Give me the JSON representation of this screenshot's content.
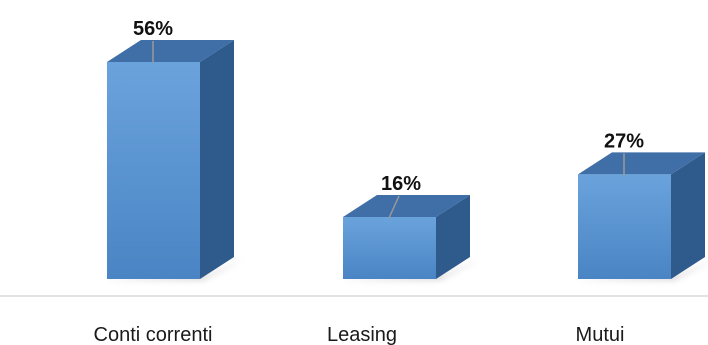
{
  "chart_data": {
    "type": "bar",
    "categories": [
      "Conti correnti",
      "Leasing",
      "Mutui"
    ],
    "values": [
      56,
      16,
      27
    ],
    "value_labels": [
      "56%",
      "16%",
      "27%"
    ],
    "unit": "%",
    "ylim": [
      0,
      60
    ],
    "grid": false,
    "legend": "none",
    "style": "3d-column",
    "colors": {
      "bar_front_top": "#6aa3dc",
      "bar_front_bottom": "#4a84c4",
      "bar_top": "#3f6fa6",
      "bar_side": "#2f5a8c",
      "shadow": "#c9c9c9",
      "baseline": "#d9d9d9",
      "leader": "#9a9a9a"
    }
  }
}
